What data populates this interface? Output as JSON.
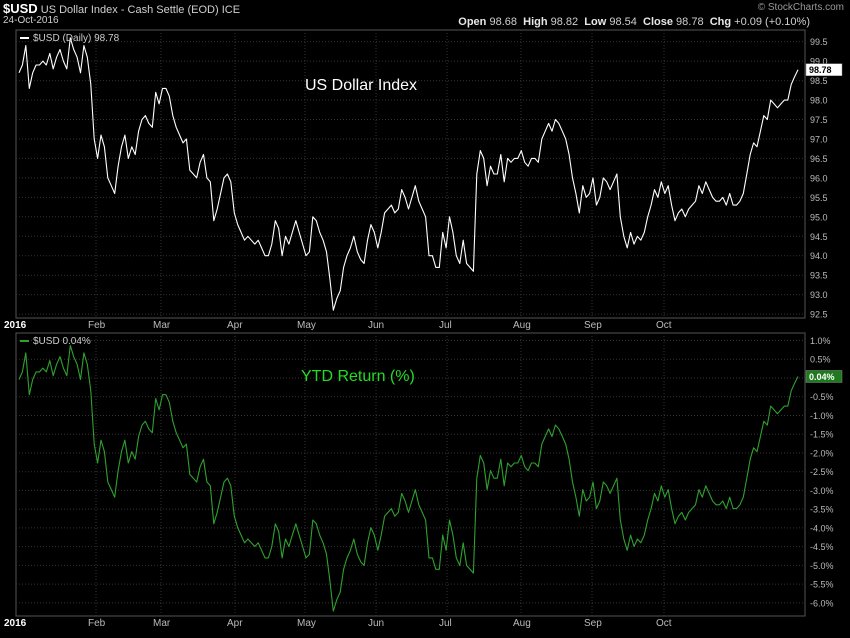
{
  "header": {
    "symbol": "$USD",
    "description": "US Dollar Index - Cash Settle (EOD)",
    "exchange": "ICE",
    "date": "24-Oct-2016",
    "open_label": "Open",
    "open": "98.68",
    "high_label": "High",
    "high": "98.82",
    "low_label": "Low",
    "low": "98.54",
    "close_label": "Close",
    "close": "98.78",
    "chg_label": "Chg",
    "chg": "+0.09 (+0.10%)",
    "watermark": "© StockCharts.com"
  },
  "colors": {
    "background": "#000000",
    "grid": "#333333",
    "price_line": "#ffffff",
    "return_line": "#2fa12f",
    "return_title": "#22dd22",
    "axis_text": "#bbbbbb"
  },
  "chart_data": [
    {
      "type": "line",
      "title": "US Dollar Index",
      "legend": "$USD (Daily) 98.78",
      "last_value_label": "98.78",
      "x_tick_labels": [
        "2016",
        "Feb",
        "Mar",
        "Apr",
        "May",
        "Jun",
        "Jul",
        "Aug",
        "Sep",
        "Oct"
      ],
      "ylim": [
        92.4,
        99.8
      ],
      "y_ticks": [
        "92.5",
        "93.0",
        "93.5",
        "94.0",
        "94.5",
        "95.0",
        "95.5",
        "96.0",
        "96.5",
        "97.0",
        "97.5",
        "98.0",
        "98.5",
        "99.0",
        "99.5"
      ],
      "grid": true,
      "series": [
        {
          "values": [
            98.7,
            98.9,
            99.4,
            98.3,
            98.7,
            98.9,
            98.9,
            99.0,
            98.9,
            99.2,
            98.8,
            99.1,
            99.3,
            99.0,
            98.8,
            99.6,
            99.3,
            99.1,
            98.7,
            99.4,
            99.1,
            98.4,
            97.0,
            96.5,
            97.1,
            96.8,
            96.0,
            95.8,
            95.6,
            96.3,
            96.8,
            97.1,
            96.5,
            96.8,
            96.6,
            97.2,
            97.5,
            97.6,
            97.4,
            97.3,
            98.2,
            97.9,
            98.3,
            98.3,
            98.1,
            97.6,
            97.3,
            97.1,
            96.9,
            97.0,
            96.2,
            96.1,
            96.0,
            96.4,
            96.6,
            96.0,
            95.9,
            94.9,
            95.2,
            95.6,
            96.0,
            96.1,
            95.9,
            95.1,
            94.8,
            94.6,
            94.4,
            94.5,
            94.4,
            94.3,
            94.4,
            94.2,
            94.0,
            94.0,
            94.3,
            94.9,
            94.7,
            94.0,
            94.5,
            94.3,
            94.6,
            94.9,
            94.6,
            94.3,
            94.0,
            94.1,
            95.0,
            94.9,
            94.6,
            94.4,
            94.1,
            93.4,
            92.6,
            92.9,
            93.1,
            93.7,
            94.0,
            94.2,
            94.5,
            94.1,
            93.9,
            93.8,
            94.4,
            94.8,
            94.6,
            94.2,
            94.6,
            95.1,
            95.2,
            95.3,
            95.1,
            95.2,
            95.7,
            95.5,
            95.2,
            95.5,
            95.8,
            95.4,
            95.2,
            95.0,
            94.0,
            94.0,
            93.7,
            93.7,
            94.6,
            94.2,
            95.0,
            94.6,
            94.0,
            93.8,
            94.4,
            93.8,
            93.7,
            93.6,
            96.1,
            96.7,
            96.5,
            95.8,
            96.3,
            96.1,
            96.1,
            96.6,
            95.9,
            96.5,
            96.4,
            96.5,
            96.5,
            96.7,
            96.4,
            96.3,
            96.5,
            96.5,
            96.4,
            97.0,
            97.2,
            97.4,
            97.2,
            97.5,
            97.4,
            97.2,
            97.0,
            96.6,
            96.0,
            95.6,
            95.1,
            95.8,
            95.5,
            95.6,
            96.0,
            95.3,
            95.5,
            96.0,
            95.9,
            95.7,
            95.9,
            96.1,
            95.0,
            94.5,
            94.2,
            94.6,
            94.3,
            94.5,
            94.4,
            94.6,
            95.0,
            95.3,
            95.7,
            95.5,
            95.9,
            95.6,
            95.8,
            95.3,
            94.9,
            95.1,
            95.2,
            95.0,
            95.2,
            95.3,
            95.4,
            95.8,
            95.6,
            95.9,
            95.7,
            95.5,
            95.4,
            95.4,
            95.5,
            95.3,
            95.6,
            95.3,
            95.3,
            95.4,
            95.6,
            96.1,
            96.6,
            96.9,
            96.8,
            97.2,
            97.6,
            97.5,
            98.0,
            97.9,
            97.8,
            97.9,
            98.0,
            98.0,
            98.4,
            98.6,
            98.78
          ]
        }
      ]
    },
    {
      "type": "line",
      "title": "YTD Return (%)",
      "legend": "$USD 0.04%",
      "last_value_label": "0.04%",
      "x_tick_labels": [
        "2016",
        "Feb",
        "Mar",
        "Apr",
        "May",
        "Jun",
        "Jul",
        "Aug",
        "Sep",
        "Oct"
      ],
      "ylim": [
        -6.35,
        1.2
      ],
      "y_ticks": [
        "-6.0%",
        "-5.5%",
        "-5.0%",
        "-4.5%",
        "-4.0%",
        "-3.5%",
        "-3.0%",
        "-2.5%",
        "-2.0%",
        "-1.5%",
        "-1.0%",
        "-0.5%",
        "0.0%",
        "0.5%",
        "1.0%"
      ],
      "grid": true
    }
  ]
}
